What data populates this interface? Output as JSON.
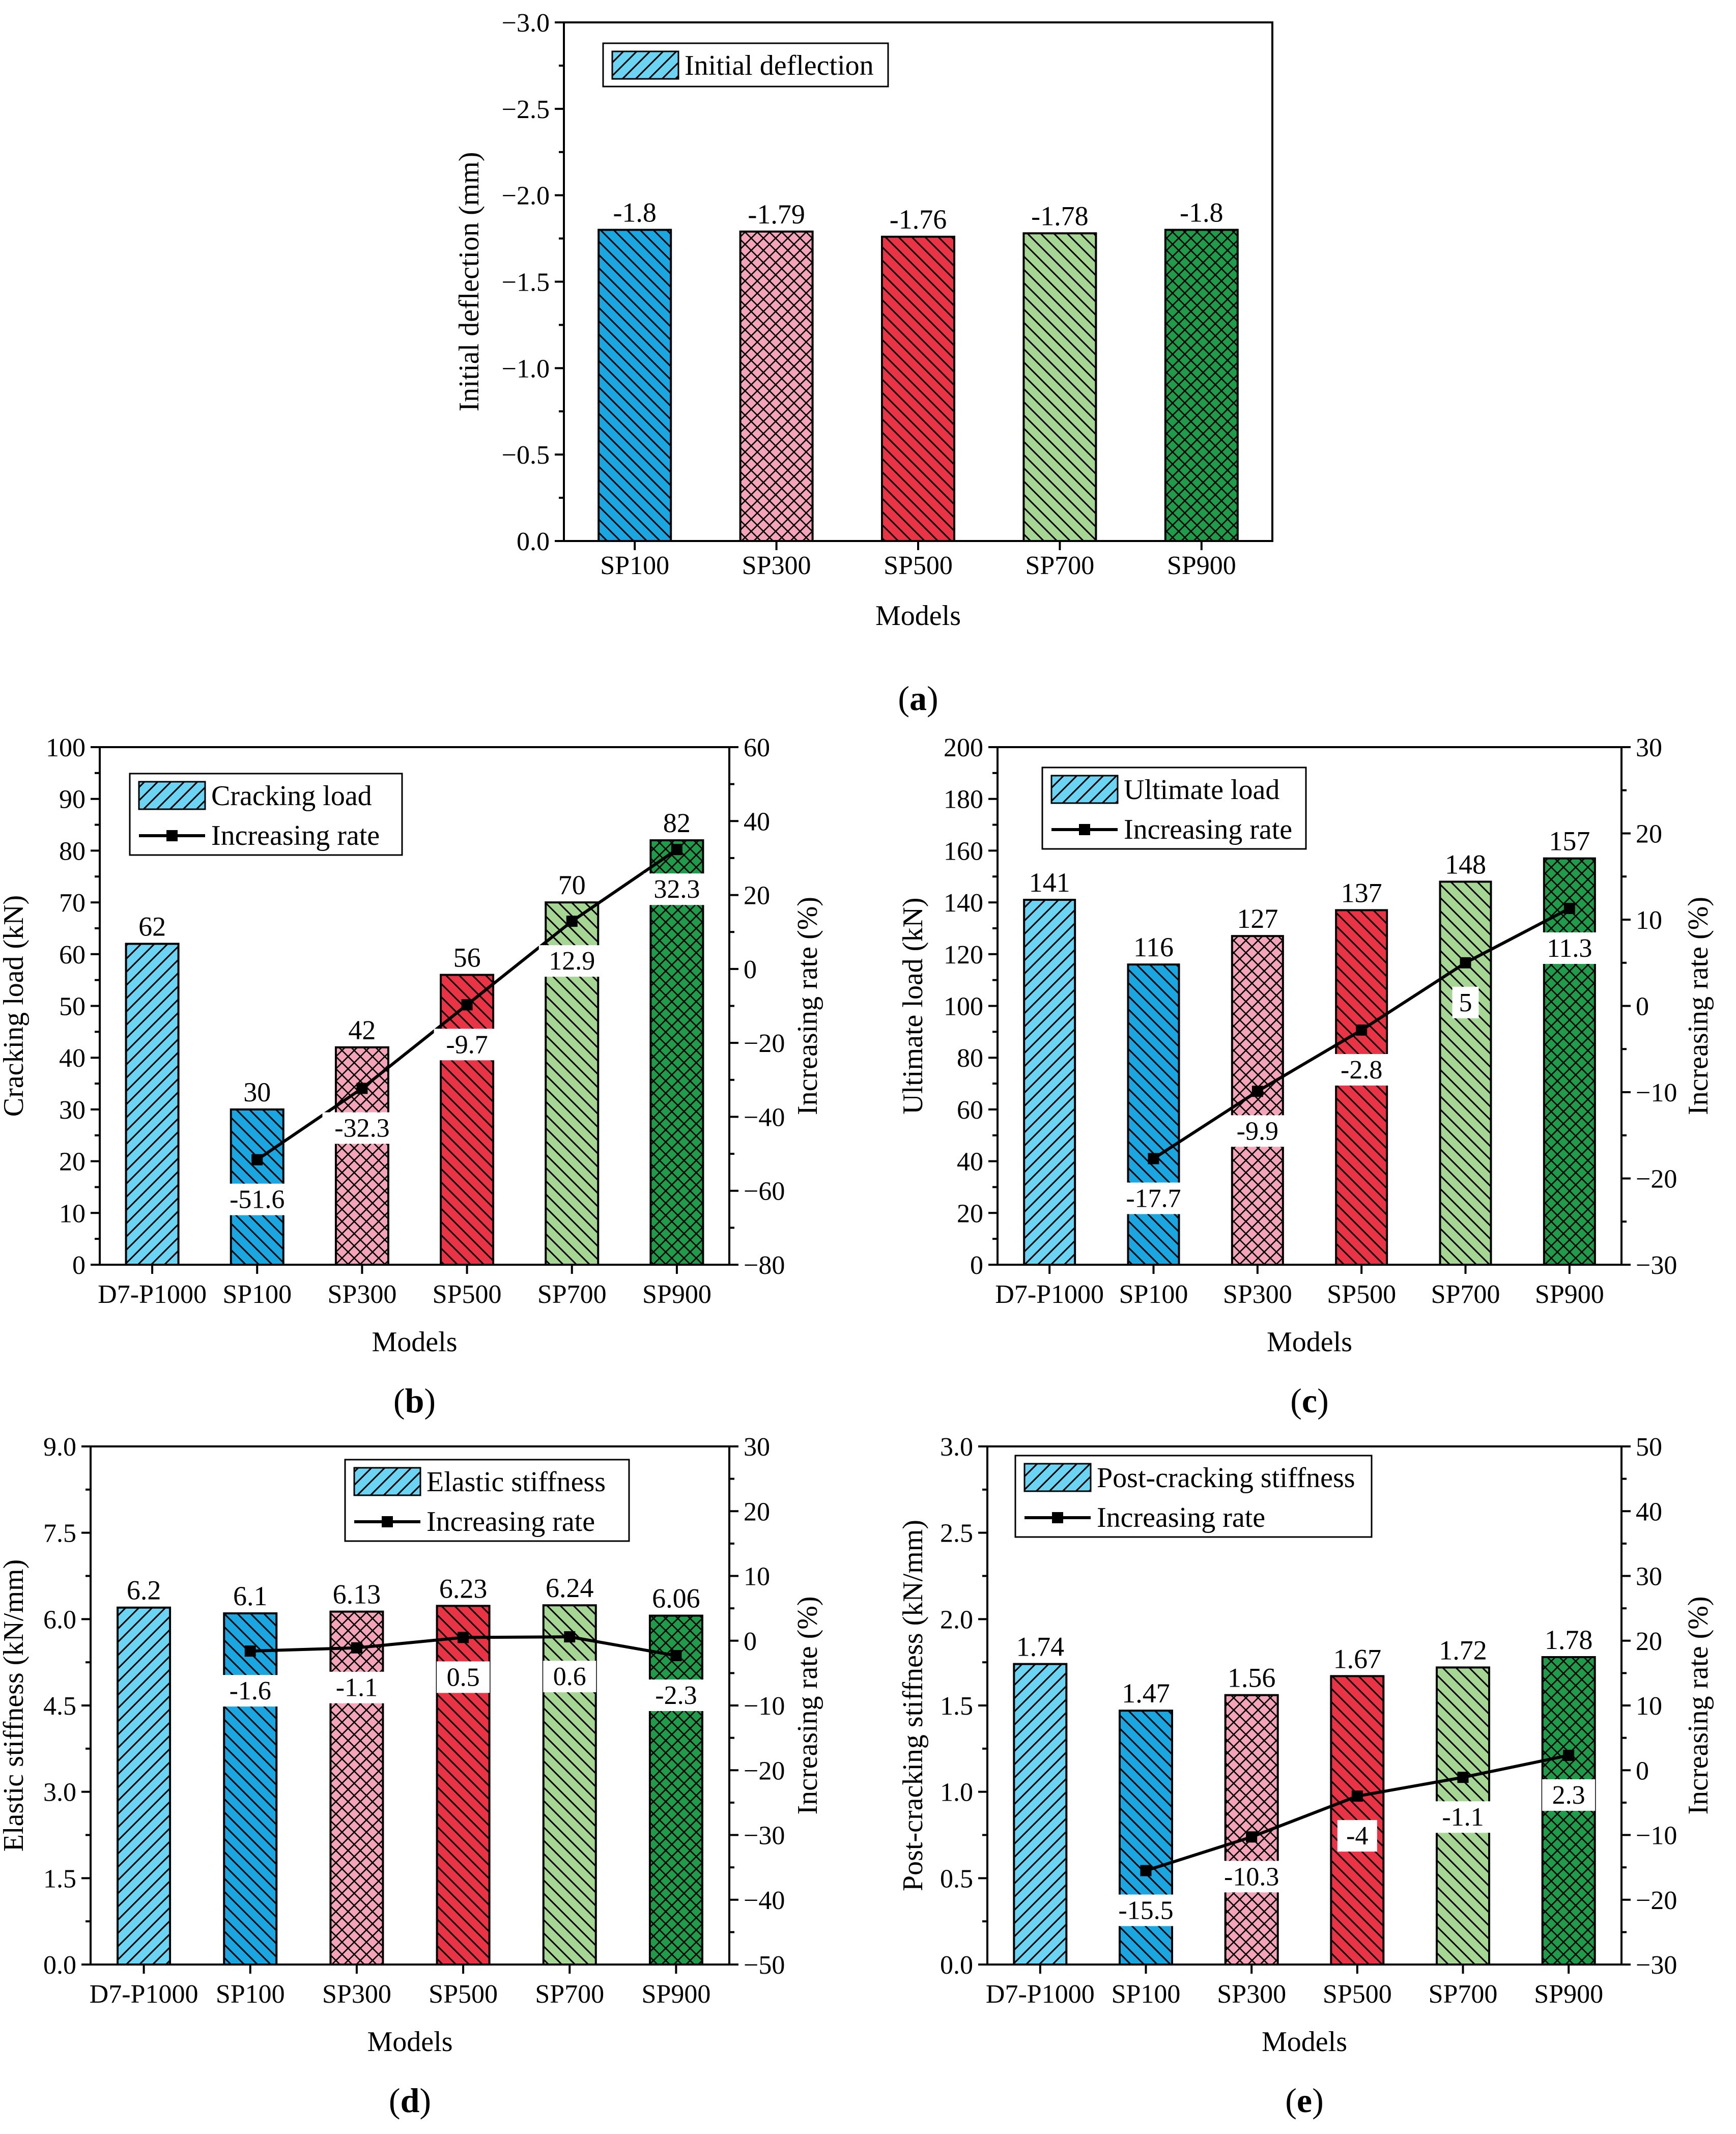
{
  "colors": {
    "light_blue": "#6ad4f2",
    "blue": "#1aa6e0",
    "pink": "#f4a3b8",
    "red": "#ea3344",
    "light_green": "#a6d694",
    "green": "#1e9c4a"
  },
  "chart_data": [
    {
      "panel": "(a)",
      "letter": "a",
      "type": "bar",
      "categories": [
        "SP100",
        "SP300",
        "SP500",
        "SP700",
        "SP900"
      ],
      "values": [
        -1.8,
        -1.79,
        -1.76,
        -1.78,
        -1.8
      ],
      "bar_labels": [
        "-1.8",
        "-1.79",
        "-1.76",
        "-1.78",
        "-1.8"
      ],
      "bar_colors": [
        "blue",
        "pink",
        "red",
        "light_green",
        "green"
      ],
      "bar_patterns": [
        "back",
        "cross",
        "back",
        "back",
        "cross"
      ],
      "xlabel": "Models",
      "ylabel": "Initial deflection (mm)",
      "ylim": [
        0,
        -3.0
      ],
      "yticks": [
        "0.0",
        "−0.5",
        "−1.0",
        "−1.5",
        "−2.0",
        "−2.5",
        "−3.0"
      ],
      "legend": {
        "bar": "Initial deflection"
      }
    },
    {
      "panel": "(b)",
      "letter": "b",
      "type": "bar+line",
      "categories": [
        "D7-P1000",
        "SP100",
        "SP300",
        "SP500",
        "SP700",
        "SP900"
      ],
      "values": [
        62,
        30,
        42,
        56,
        70,
        82
      ],
      "bar_labels": [
        "62",
        "30",
        "42",
        "56",
        "70",
        "82"
      ],
      "bar_colors": [
        "light_blue",
        "blue",
        "pink",
        "red",
        "light_green",
        "green"
      ],
      "bar_patterns": [
        "fwd",
        "back",
        "cross",
        "back",
        "back",
        "cross"
      ],
      "rate_values": [
        -51.6,
        -32.3,
        -9.7,
        12.9,
        32.3
      ],
      "rate_labels": [
        "-51.6",
        "-32.3",
        "-9.7",
        "12.9",
        "32.3"
      ],
      "xlabel": "Models",
      "ylabel": "Cracking load (kN)",
      "y2label": "Increasing rate (%)",
      "ylim": [
        0,
        100
      ],
      "y2lim": [
        -80,
        60
      ],
      "yticks": [
        "0",
        "10",
        "20",
        "30",
        "40",
        "50",
        "60",
        "70",
        "80",
        "90",
        "100"
      ],
      "y2ticks": [
        "−80",
        "−60",
        "−40",
        "−20",
        "0",
        "20",
        "40",
        "60"
      ],
      "legend": {
        "bar": "Cracking load",
        "line": "Increasing rate"
      }
    },
    {
      "panel": "(c)",
      "letter": "c",
      "type": "bar+line",
      "categories": [
        "D7-P1000",
        "SP100",
        "SP300",
        "SP500",
        "SP700",
        "SP900"
      ],
      "values": [
        141,
        116,
        127,
        137,
        148,
        157
      ],
      "bar_labels": [
        "141",
        "116",
        "127",
        "137",
        "148",
        "157"
      ],
      "bar_colors": [
        "light_blue",
        "blue",
        "pink",
        "red",
        "light_green",
        "green"
      ],
      "bar_patterns": [
        "fwd",
        "back",
        "cross",
        "back",
        "back",
        "cross"
      ],
      "rate_values": [
        -17.7,
        -9.9,
        -2.8,
        5,
        11.3
      ],
      "rate_labels": [
        "-17.7",
        "-9.9",
        "-2.8",
        "5",
        "11.3"
      ],
      "xlabel": "Models",
      "ylabel": "Ultimate load (kN)",
      "y2label": "Increasing rate (%)",
      "ylim": [
        0,
        200
      ],
      "y2lim": [
        -30,
        30
      ],
      "yticks": [
        "0",
        "20",
        "40",
        "60",
        "80",
        "100",
        "120",
        "140",
        "160",
        "180",
        "200"
      ],
      "y2ticks": [
        "−30",
        "−20",
        "−10",
        "0",
        "10",
        "20",
        "30"
      ],
      "legend": {
        "bar": "Ultimate load",
        "line": "Increasing rate"
      }
    },
    {
      "panel": "(d)",
      "letter": "d",
      "type": "bar+line",
      "categories": [
        "D7-P1000",
        "SP100",
        "SP300",
        "SP500",
        "SP700",
        "SP900"
      ],
      "values": [
        6.2,
        6.1,
        6.13,
        6.23,
        6.24,
        6.06
      ],
      "bar_labels": [
        "6.2",
        "6.1",
        "6.13",
        "6.23",
        "6.24",
        "6.06"
      ],
      "bar_colors": [
        "light_blue",
        "blue",
        "pink",
        "red",
        "light_green",
        "green"
      ],
      "bar_patterns": [
        "fwd",
        "back",
        "cross",
        "back",
        "back",
        "cross"
      ],
      "rate_values": [
        -1.6,
        -1.1,
        0.5,
        0.6,
        -2.3
      ],
      "rate_labels": [
        "-1.6",
        "-1.1",
        "0.5",
        "0.6",
        "-2.3"
      ],
      "xlabel": "Models",
      "ylabel": "Elastic stiffness (kN/mm)",
      "y2label": "Increasing rate (%)",
      "ylim": [
        0,
        9.0
      ],
      "y2lim": [
        -50,
        30
      ],
      "yticks": [
        "0.0",
        "1.5",
        "3.0",
        "4.5",
        "6.0",
        "7.5",
        "9.0"
      ],
      "y2ticks": [
        "−50",
        "−40",
        "−30",
        "−20",
        "−10",
        "0",
        "10",
        "20",
        "30"
      ],
      "legend": {
        "bar": "Elastic stiffness",
        "line": "Increasing rate"
      }
    },
    {
      "panel": "(e)",
      "letter": "e",
      "type": "bar+line",
      "categories": [
        "D7-P1000",
        "SP100",
        "SP300",
        "SP500",
        "SP700",
        "SP900"
      ],
      "values": [
        1.74,
        1.47,
        1.56,
        1.67,
        1.72,
        1.78
      ],
      "bar_labels": [
        "1.74",
        "1.47",
        "1.56",
        "1.67",
        "1.72",
        "1.78"
      ],
      "bar_colors": [
        "light_blue",
        "blue",
        "pink",
        "red",
        "light_green",
        "green"
      ],
      "bar_patterns": [
        "fwd",
        "back",
        "cross",
        "back",
        "back",
        "cross"
      ],
      "rate_values": [
        -15.5,
        -10.3,
        -4,
        -1.1,
        2.3
      ],
      "rate_labels": [
        "-15.5",
        "-10.3",
        "-4",
        "-1.1",
        "2.3"
      ],
      "xlabel": "Models",
      "ylabel": "Post-cracking stiffness (kN/mm)",
      "y2label": "Increasing rate (%)",
      "ylim": [
        0,
        3.0
      ],
      "y2lim": [
        -30,
        50
      ],
      "yticks": [
        "0.0",
        "0.5",
        "1.0",
        "1.5",
        "2.0",
        "2.5",
        "3.0"
      ],
      "y2ticks": [
        "−30",
        "−20",
        "−10",
        "0",
        "10",
        "20",
        "30",
        "40",
        "50"
      ],
      "legend": {
        "bar": "Post-cracking stiffness",
        "line": "Increasing rate"
      }
    }
  ]
}
